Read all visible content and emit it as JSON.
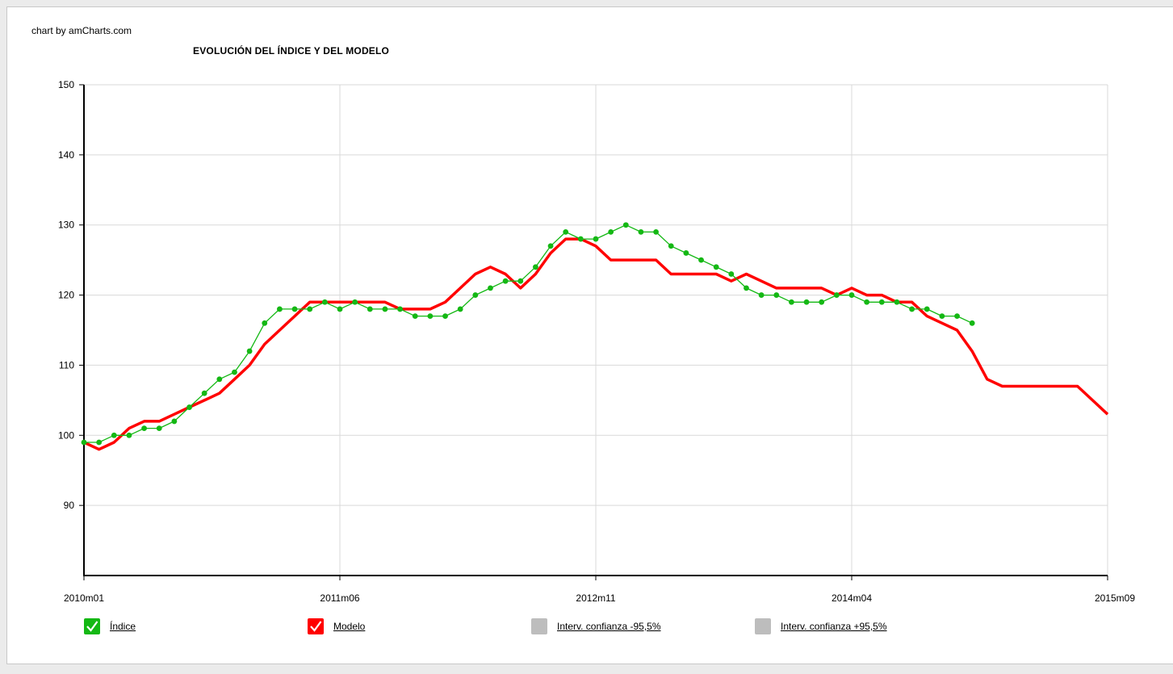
{
  "credit": "chart by amCharts.com",
  "colors": {
    "indice": "#14b814",
    "modelo": "#ff0000",
    "interval": "#bdbdbd",
    "grid": "#d9d9d9",
    "axis": "#000000"
  },
  "legend": [
    {
      "label": "Índice",
      "color": "#14b814",
      "icon": "check-icon",
      "active": true
    },
    {
      "label": "Modelo",
      "color": "#ff0000",
      "icon": "check-icon",
      "active": true
    },
    {
      "label": "Interv. confianza -95,5%",
      "color": "#bdbdbd",
      "icon": "",
      "active": false
    },
    {
      "label": "Interv. confianza +95,5%",
      "color": "#bdbdbd",
      "icon": "",
      "active": false
    }
  ],
  "chart_data": {
    "type": "line",
    "title": "EVOLUCIÓN DEL ÍNDICE Y DEL MODELO",
    "xlabel": "",
    "ylabel": "",
    "ylim": [
      80,
      150
    ],
    "yticks": [
      90,
      100,
      110,
      120,
      130,
      140,
      150
    ],
    "xlim": [
      0,
      68
    ],
    "xticks": [
      {
        "x": 0,
        "label": "2010m01"
      },
      {
        "x": 17,
        "label": "2011m06"
      },
      {
        "x": 34,
        "label": "2012m11"
      },
      {
        "x": 51,
        "label": "2014m04"
      },
      {
        "x": 68,
        "label": "2015m09"
      }
    ],
    "grid": true,
    "legend_position": "bottom",
    "series": [
      {
        "name": "Índice",
        "color": "#14b814",
        "markers": true,
        "x": [
          0,
          1,
          2,
          3,
          4,
          5,
          6,
          7,
          8,
          9,
          10,
          11,
          12,
          13,
          14,
          15,
          16,
          17,
          18,
          19,
          20,
          21,
          22,
          23,
          24,
          25,
          26,
          27,
          28,
          29,
          30,
          31,
          32,
          33,
          34,
          35,
          36,
          37,
          38,
          39,
          40,
          41,
          42,
          43,
          44,
          45,
          46,
          47,
          48,
          49,
          50,
          51,
          52,
          53,
          54,
          55,
          56,
          57,
          58,
          59
        ],
        "values": [
          99,
          99,
          100,
          100,
          101,
          101,
          102,
          104,
          106,
          108,
          109,
          112,
          116,
          118,
          118,
          118,
          119,
          118,
          119,
          118,
          118,
          118,
          117,
          117,
          117,
          118,
          120,
          121,
          122,
          122,
          124,
          127,
          129,
          128,
          128,
          129,
          130,
          129,
          129,
          127,
          126,
          125,
          124,
          123,
          121,
          120,
          120,
          119,
          119,
          119,
          120,
          120,
          119,
          119,
          119,
          118,
          118,
          117,
          117,
          116
        ]
      },
      {
        "name": "Modelo",
        "color": "#ff0000",
        "markers": false,
        "x": [
          0,
          1,
          2,
          3,
          4,
          5,
          6,
          7,
          8,
          9,
          10,
          11,
          12,
          13,
          14,
          15,
          16,
          17,
          18,
          19,
          20,
          21,
          22,
          23,
          24,
          25,
          26,
          27,
          28,
          29,
          30,
          31,
          32,
          33,
          34,
          35,
          36,
          37,
          38,
          39,
          40,
          41,
          42,
          43,
          44,
          45,
          46,
          47,
          48,
          49,
          50,
          51,
          52,
          53,
          54,
          55,
          56,
          57,
          58,
          59,
          60,
          61,
          62,
          63,
          64,
          65,
          66,
          67,
          68
        ],
        "values": [
          99,
          98,
          99,
          101,
          102,
          102,
          103,
          104,
          105,
          106,
          108,
          110,
          113,
          115,
          117,
          119,
          119,
          119,
          119,
          119,
          119,
          118,
          118,
          118,
          119,
          121,
          123,
          124,
          123,
          121,
          123,
          126,
          128,
          128,
          127,
          125,
          125,
          125,
          125,
          123,
          123,
          123,
          123,
          122,
          123,
          122,
          121,
          121,
          121,
          121,
          120,
          121,
          120,
          120,
          119,
          119,
          117,
          116,
          115,
          112,
          108,
          107,
          107,
          107,
          107,
          107,
          107,
          105,
          103
        ]
      }
    ]
  }
}
